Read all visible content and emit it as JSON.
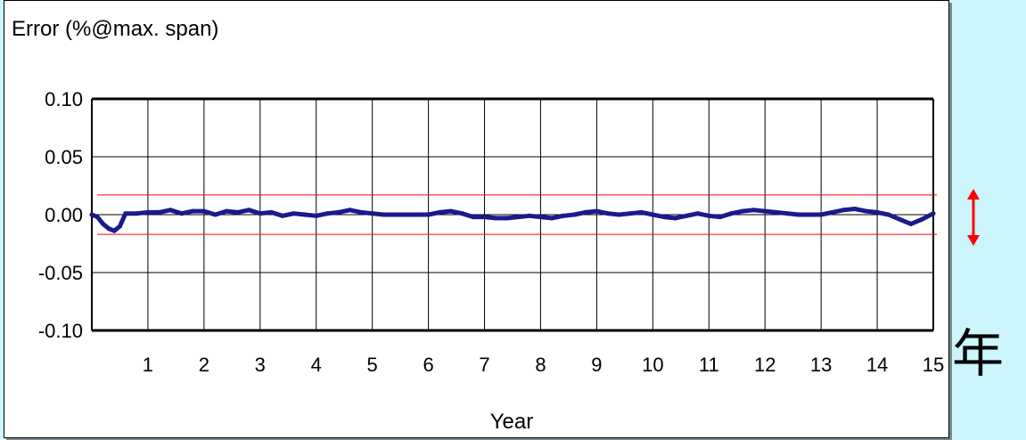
{
  "chart_data": {
    "type": "line",
    "title": "Error (%@max. span)",
    "xlabel": "Year",
    "ylabel": "",
    "xlim": [
      0,
      15
    ],
    "ylim": [
      -0.1,
      0.1
    ],
    "x_ticks": [
      "1",
      "2",
      "3",
      "4",
      "5",
      "6",
      "7",
      "8",
      "9",
      "10",
      "11",
      "12",
      "13",
      "14",
      "15"
    ],
    "y_ticks": [
      "0.10",
      "0.05",
      "0.00",
      "-0.05",
      "-0.10"
    ],
    "grid": true,
    "series": [
      {
        "color": "#1a1a8c",
        "x": [
          0.0,
          0.1,
          0.2,
          0.3,
          0.4,
          0.5,
          0.6,
          0.8,
          1.0,
          1.2,
          1.4,
          1.6,
          1.8,
          2.0,
          2.2,
          2.4,
          2.6,
          2.8,
          3.0,
          3.2,
          3.4,
          3.6,
          3.8,
          4.0,
          4.2,
          4.4,
          4.6,
          4.8,
          5.0,
          5.2,
          5.6,
          6.0,
          6.2,
          6.4,
          6.6,
          6.8,
          7.0,
          7.2,
          7.4,
          7.6,
          7.8,
          8.0,
          8.2,
          8.4,
          8.6,
          8.8,
          9.0,
          9.2,
          9.4,
          9.6,
          9.8,
          10.0,
          10.2,
          10.4,
          10.6,
          10.8,
          11.0,
          11.2,
          11.4,
          11.6,
          11.8,
          12.0,
          12.2,
          12.4,
          12.6,
          12.8,
          13.0,
          13.2,
          13.4,
          13.6,
          13.8,
          14.0,
          14.2,
          14.4,
          14.6,
          14.8,
          15.0
        ],
        "y": [
          0.0,
          -0.002,
          -0.008,
          -0.012,
          -0.014,
          -0.01,
          0.001,
          0.001,
          0.002,
          0.002,
          0.004,
          0.001,
          0.003,
          0.003,
          0.0,
          0.003,
          0.002,
          0.004,
          0.001,
          0.002,
          -0.001,
          0.001,
          0.0,
          -0.001,
          0.001,
          0.002,
          0.004,
          0.002,
          0.001,
          0.0,
          0.0,
          0.0,
          0.002,
          0.003,
          0.001,
          -0.002,
          -0.002,
          -0.003,
          -0.003,
          -0.002,
          -0.001,
          -0.002,
          -0.003,
          -0.001,
          0.0,
          0.002,
          0.003,
          0.001,
          0.0,
          0.001,
          0.002,
          0.0,
          -0.002,
          -0.003,
          -0.001,
          0.001,
          -0.001,
          -0.002,
          0.001,
          0.003,
          0.004,
          0.003,
          0.002,
          0.001,
          0.0,
          0.0,
          0.0,
          0.002,
          0.004,
          0.005,
          0.003,
          0.002,
          0.0,
          -0.004,
          -0.008,
          -0.004,
          0.001
        ]
      }
    ],
    "reference_lines": [
      {
        "y": 0.017,
        "color": "#ff0000"
      },
      {
        "y": -0.017,
        "color": "#ff0000"
      }
    ]
  },
  "side_annotation": {
    "arrow_icon": "double-headed-arrow",
    "arrow_color": "#ff0000",
    "kanji": "年",
    "kanji_color": "#ff0000"
  }
}
